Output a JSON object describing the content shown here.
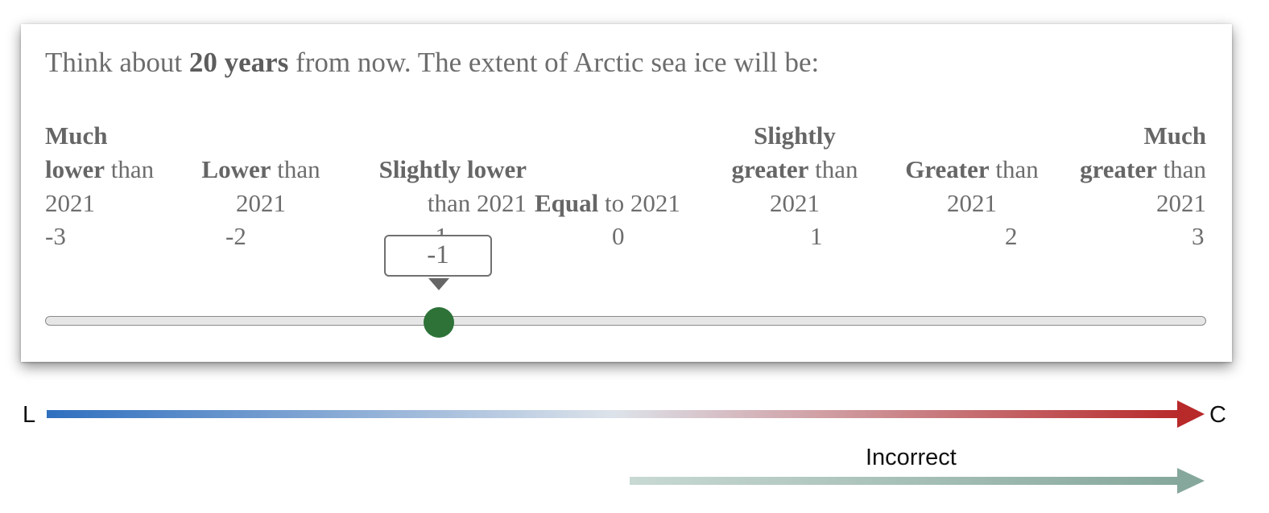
{
  "question": {
    "prefix": "Think about ",
    "emphasis": "20 years",
    "suffix": " from now. The extent of Arctic sea ice will be:"
  },
  "scale_labels": [
    {
      "bold1": "Much",
      "bold2": "lower",
      "rest2": " than",
      "line3": "2021",
      "value": "-3"
    },
    {
      "bold": "Lower",
      "rest": " than",
      "line2": "2021",
      "value": "-2"
    },
    {
      "bold": "Slightly lower",
      "line2": "than 2021",
      "value": "-1"
    },
    {
      "bold": "Equal",
      "rest": " to 2021",
      "value": "0"
    },
    {
      "bold1": "Slightly",
      "bold2": "greater",
      "rest2": " than",
      "line3": "2021",
      "value": "1"
    },
    {
      "bold": "Greater",
      "rest": " than",
      "line2": "2021",
      "value": "2"
    },
    {
      "bold1": "Much",
      "bold2": "greater",
      "rest2": " than",
      "line3": "2021",
      "value": "3"
    }
  ],
  "slider": {
    "min": -3,
    "max": 3,
    "value": -1,
    "tooltip": "-1",
    "thumb_color": "#2e7238"
  },
  "annotation": {
    "left_label": "L",
    "right_label": "C",
    "incorrect_label": "Incorrect",
    "gradient_colors": [
      "#2f6fbf",
      "#dde3ea",
      "#b8292a"
    ],
    "incorrect_colors": [
      "#c8d9d3",
      "#86a89c"
    ]
  }
}
